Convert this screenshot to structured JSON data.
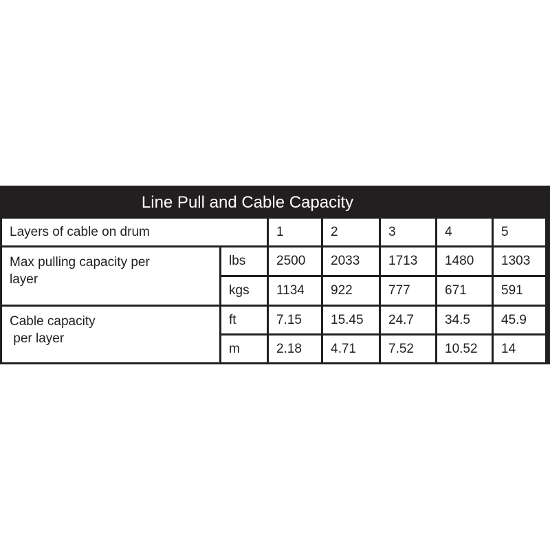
{
  "title": "Line Pull and Cable Capacity",
  "header_row": {
    "label": "Layers of cable on drum",
    "layers": [
      "1",
      "2",
      "3",
      "4",
      "5"
    ]
  },
  "groups": [
    {
      "label_line1": "Max pulling capacity per",
      "label_line2": "layer",
      "rows": [
        {
          "unit": "lbs",
          "values": [
            "2500",
            "2033",
            "1713",
            "1480",
            "1303"
          ]
        },
        {
          "unit": "kgs",
          "values": [
            "1134",
            "922",
            "777",
            "671",
            "591"
          ]
        }
      ]
    },
    {
      "label_line1": "Cable capacity",
      "label_line2": " per layer",
      "rows": [
        {
          "unit": "ft",
          "values": [
            "7.15",
            "15.45",
            "24.7",
            "34.5",
            "45.9"
          ]
        },
        {
          "unit": "m",
          "values": [
            "2.18",
            "4.71",
            "7.52",
            "10.52",
            "14"
          ]
        }
      ]
    }
  ]
}
